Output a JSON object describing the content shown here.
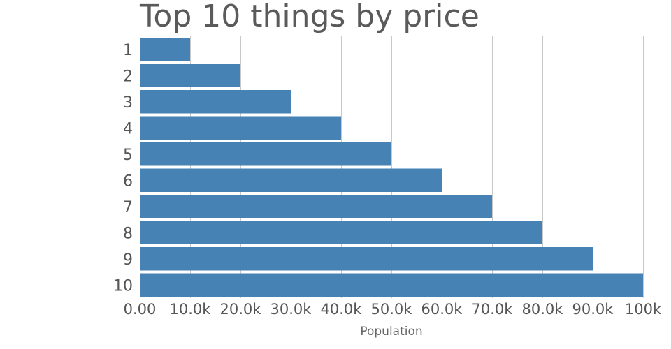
{
  "chart_data": {
    "type": "bar",
    "orientation": "horizontal",
    "title": "Top 10 things by price",
    "xlabel": "Population",
    "ylabel": "",
    "categories": [
      "1",
      "2",
      "3",
      "4",
      "5",
      "6",
      "7",
      "8",
      "9",
      "10"
    ],
    "values": [
      10000,
      20000,
      30000,
      40000,
      50000,
      60000,
      70000,
      80000,
      90000,
      100000
    ],
    "xlim": [
      0,
      100000
    ],
    "xticks": [
      0,
      10000,
      20000,
      30000,
      40000,
      50000,
      60000,
      70000,
      80000,
      90000,
      100000
    ],
    "xtick_labels": [
      "0.00",
      "10.0k",
      "20.0k",
      "30.0k",
      "40.0k",
      "50.0k",
      "60.0k",
      "70.0k",
      "80.0k",
      "90.0k",
      "100k"
    ],
    "grid": true,
    "legend": "none",
    "bar_color": "#4682b4"
  }
}
